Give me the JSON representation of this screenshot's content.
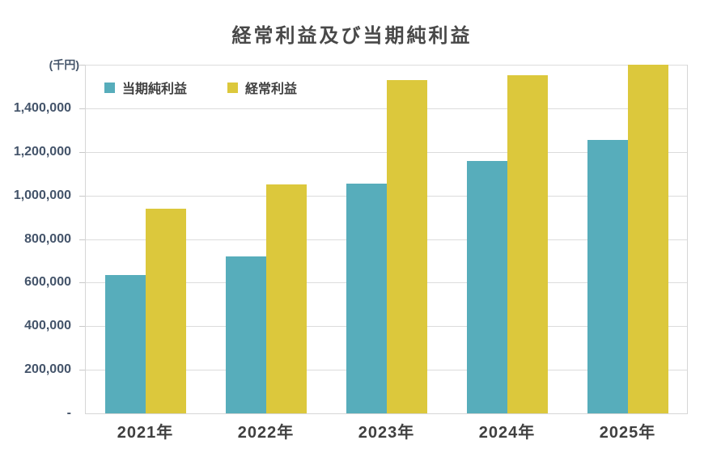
{
  "chart": {
    "title": "経常利益及び当期純利益",
    "unit_label": "(千円)"
  },
  "chart_data": {
    "type": "bar",
    "title": "経常利益及び当期純利益",
    "unit_label": "(千円)",
    "categories": [
      "2021年",
      "2022年",
      "2023年",
      "2024年",
      "2025年"
    ],
    "series": [
      {
        "name": "当期純利益",
        "color": "#57ADBB",
        "values": [
          635000,
          720000,
          1055000,
          1160000,
          1255000
        ]
      },
      {
        "name": "経常利益",
        "color": "#DCC83C",
        "values": [
          940000,
          1050000,
          1530000,
          1550000,
          1600000
        ]
      }
    ],
    "xlabel": "",
    "ylabel": "(千円)",
    "ylim": [
      0,
      1600000
    ],
    "ytick_step": 200000,
    "ytick_labels": [
      "-",
      "200,000",
      "400,000",
      "600,000",
      "800,000",
      "1,000,000",
      "1,200,000",
      "1,400,000"
    ],
    "zero_label": "-",
    "grid": true,
    "legend_position": "top-left-inside",
    "colors": {
      "background": "#FFFFFF",
      "gridline": "#DCDCDC",
      "axis": "#D6D6D6",
      "title_text": "#484848",
      "ytick_text": "#44546A",
      "xtick_text": "#404040"
    }
  }
}
